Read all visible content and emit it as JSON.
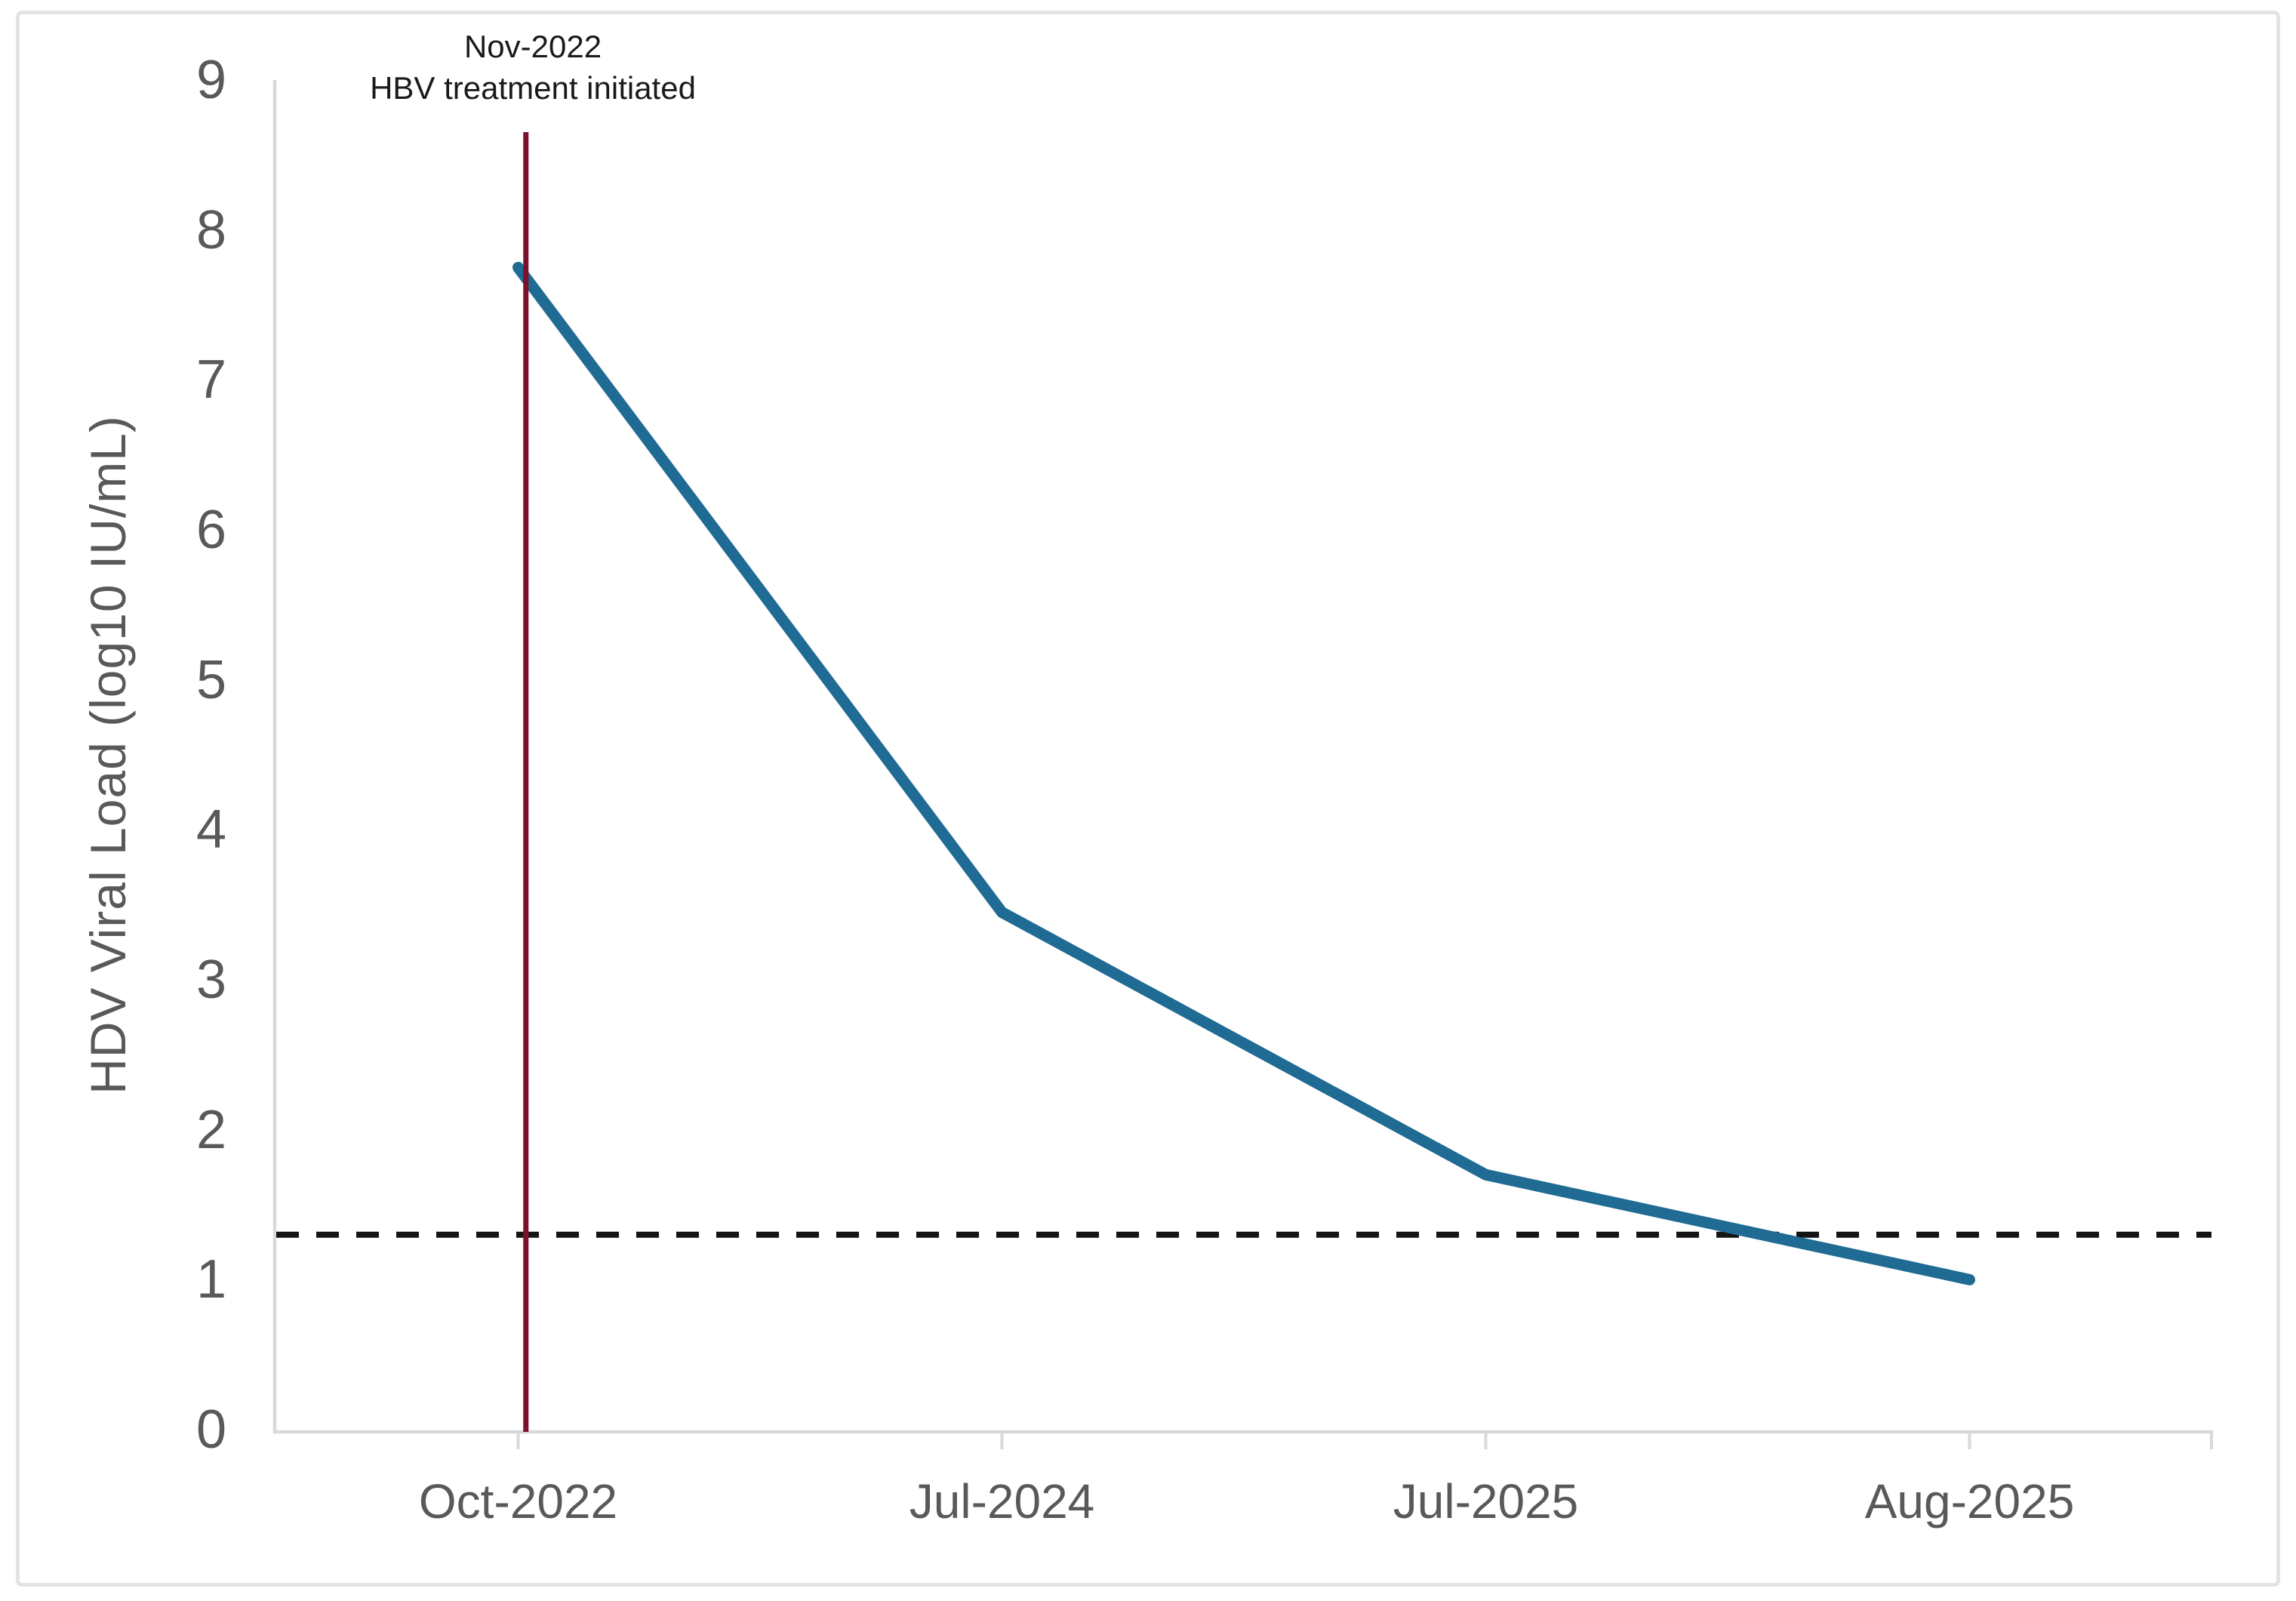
{
  "chart_data": {
    "type": "line",
    "title": "",
    "categories": [
      "Oct-2022",
      "Jul-2024",
      "Jul-2025",
      "Aug-2025"
    ],
    "series": [
      {
        "name": "HDV viral load",
        "values": [
          7.75,
          3.45,
          1.7,
          1.0
        ]
      }
    ],
    "xlabel": "",
    "ylabel": "HDV Viral Load (log10 IU/mL)",
    "ylim": [
      0,
      9
    ],
    "yticks": [
      0,
      1,
      2,
      3,
      4,
      5,
      6,
      7,
      8,
      9
    ],
    "grid": false,
    "legend": false,
    "reference_lines": {
      "threshold_dashed": {
        "y_value": 1.3,
        "style": "dashed"
      },
      "event_vertical": {
        "x_frac": 0.129,
        "label_line1": "Nov-2022",
        "label_line2": "HBV treatment initiated"
      }
    },
    "colors": {
      "series_line": "#1F6B94",
      "event_line": "#7B112D",
      "threshold_line": "#141414",
      "axis_line": "#D9D9D9",
      "tick_label": "#595959",
      "annotation_text": "#1A1A1A",
      "frame_border": "#E3E3E3",
      "background": "#FFFFFF"
    }
  }
}
